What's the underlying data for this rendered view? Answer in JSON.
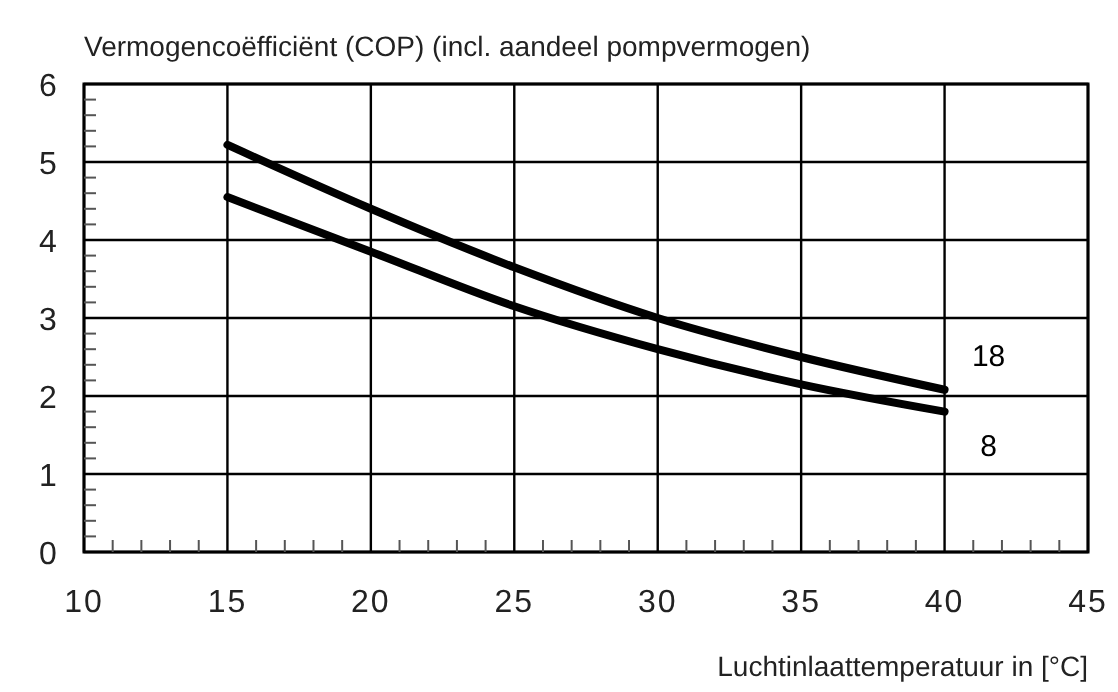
{
  "chart_data": {
    "type": "line",
    "title": "Vermogencoëfficiënt (COP) (incl. aandeel pompvermogen)",
    "xlabel": "Luchtinlaattemperatuur in [°C]",
    "xlim": [
      10,
      45
    ],
    "ylim": [
      0,
      6
    ],
    "xticks": [
      10,
      {
        "value": 11,
        "label": null
      },
      {
        "value": 12,
        "label": null
      },
      {
        "value": 13,
        "label": null
      },
      {
        "value": 14,
        "label": null
      },
      15,
      {
        "value": 16,
        "label": null
      },
      {
        "value": 17,
        "label": null
      },
      {
        "value": 18,
        "label": null
      },
      {
        "value": 19,
        "label": null
      },
      20,
      {
        "value": 21,
        "label": null
      },
      {
        "value": 22,
        "label": null
      },
      {
        "value": 23,
        "label": null
      },
      {
        "value": 24,
        "label": null
      },
      25,
      {
        "value": 26,
        "label": null
      },
      {
        "value": 27,
        "label": null
      },
      {
        "value": 28,
        "label": null
      },
      {
        "value": 29,
        "label": null
      },
      30,
      {
        "value": 31,
        "label": null
      },
      {
        "value": 32,
        "label": null
      },
      {
        "value": 33,
        "label": null
      },
      {
        "value": 34,
        "label": null
      },
      35,
      {
        "value": 36,
        "label": null
      },
      {
        "value": 37,
        "label": null
      },
      {
        "value": 38,
        "label": null
      },
      {
        "value": 39,
        "label": null
      },
      40,
      {
        "value": 41,
        "label": null
      },
      {
        "value": 42,
        "label": null
      },
      {
        "value": 43,
        "label": null
      },
      {
        "value": 44,
        "label": null
      },
      45
    ],
    "yticks": [
      0,
      {
        "value": 0.2,
        "label": null
      },
      {
        "value": 0.4,
        "label": null
      },
      {
        "value": 0.6,
        "label": null
      },
      {
        "value": 0.8,
        "label": null
      },
      1,
      {
        "value": 1.2,
        "label": null
      },
      {
        "value": 1.4,
        "label": null
      },
      {
        "value": 1.6,
        "label": null
      },
      {
        "value": 1.8,
        "label": null
      },
      2,
      {
        "value": 2.2,
        "label": null
      },
      {
        "value": 2.4,
        "label": null
      },
      {
        "value": 2.6,
        "label": null
      },
      {
        "value": 2.8,
        "label": null
      },
      3,
      {
        "value": 3.2,
        "label": null
      },
      {
        "value": 3.4,
        "label": null
      },
      {
        "value": 3.6,
        "label": null
      },
      {
        "value": 3.8,
        "label": null
      },
      4,
      {
        "value": 4.2,
        "label": null
      },
      {
        "value": 4.4,
        "label": null
      },
      {
        "value": 4.6,
        "label": null
      },
      {
        "value": 4.8,
        "label": null
      },
      5,
      {
        "value": 5.2,
        "label": null
      },
      {
        "value": 5.4,
        "label": null
      },
      {
        "value": 5.6,
        "label": null
      },
      {
        "value": 5.8,
        "label": null
      },
      6
    ],
    "grid": true,
    "marker": "none",
    "line_style": "solid",
    "x": [
      15,
      20,
      25,
      30,
      35,
      40
    ],
    "series": [
      {
        "name": "18",
        "color": "#000000",
        "values": [
          5.22,
          4.4,
          3.65,
          3.0,
          2.5,
          2.08
        ]
      },
      {
        "name": "8",
        "color": "#000000",
        "values": [
          4.55,
          3.85,
          3.15,
          2.6,
          2.15,
          1.8
        ]
      }
    ]
  }
}
